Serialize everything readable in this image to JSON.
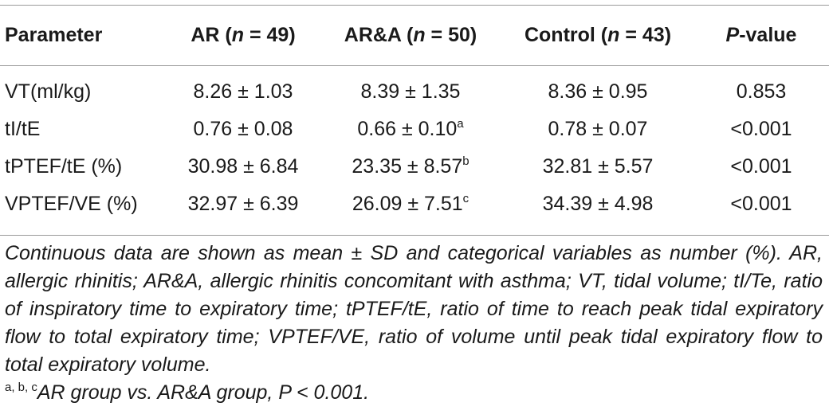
{
  "table": {
    "headers": [
      {
        "text": "Parameter"
      },
      {
        "prefix": "AR (",
        "n": "n",
        "suffix": " = 49)"
      },
      {
        "prefix": "AR&A (",
        "n": "n",
        "suffix": " = 50)"
      },
      {
        "prefix": "Control (",
        "n": "n",
        "suffix": " = 43)"
      },
      {
        "p": "P",
        "suffix": "-value"
      }
    ],
    "rows": [
      {
        "param": "VT(ml/kg)",
        "ar": "8.26 ± 1.03",
        "ara": "8.39 ± 1.35",
        "ara_sup": "",
        "control": "8.36 ± 0.95",
        "p": "0.853"
      },
      {
        "param": "tI/tE",
        "ar": "0.76 ± 0.08",
        "ara": "0.66 ± 0.10",
        "ara_sup": "a",
        "control": "0.78 ± 0.07",
        "p": "<0.001"
      },
      {
        "param": "tPTEF/tE (%)",
        "ar": "30.98 ± 6.84",
        "ara": "23.35 ± 8.57",
        "ara_sup": "b",
        "control": "32.81 ± 5.57",
        "p": "<0.001"
      },
      {
        "param": "VPTEF/VE (%)",
        "ar": "32.97 ± 6.39",
        "ara": "26.09 ± 7.51",
        "ara_sup": "c",
        "control": "34.39 ± 4.98",
        "p": "<0.001"
      }
    ]
  },
  "footnote": {
    "main": "Continuous data are shown as mean ± SD and categorical variables as number (%). AR, allergic rhinitis; AR&A, allergic rhinitis concomitant with asthma; VT, tidal volume; tI/Te, ratio of inspiratory time to expiratory time; tPTEF/tE, ratio of time to reach peak tidal expiratory flow to total expiratory time; VPTEF/VE, ratio of volume until peak tidal expiratory flow to total expiratory volume.",
    "markers": "a, b, c",
    "comparison": "AR group vs. AR&A group, P < 0.001."
  }
}
